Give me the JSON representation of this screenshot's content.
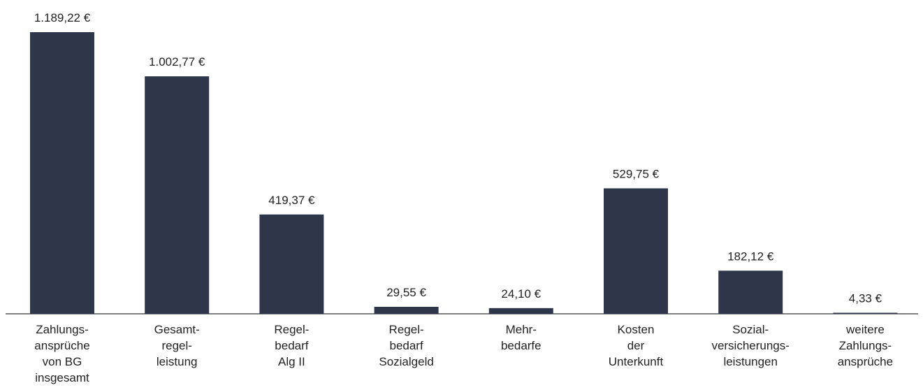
{
  "chart_data": {
    "type": "bar",
    "categories": [
      [
        "Zahlungs-",
        "ansprüche",
        "von BG",
        "insgesamt"
      ],
      [
        "Gesamt-",
        "regel-",
        "leistung"
      ],
      [
        "Regel-",
        "bedarf",
        "Alg II"
      ],
      [
        "Regel-",
        "bedarf",
        "Sozialgeld"
      ],
      [
        "Mehr-",
        "bedarfe"
      ],
      [
        "Kosten",
        "der",
        "Unterkunft"
      ],
      [
        "Sozial-",
        "versicherungs-",
        "leistungen"
      ],
      [
        "weitere",
        "Zahlungs-",
        "ansprüche"
      ]
    ],
    "values": [
      1189.22,
      1002.77,
      419.37,
      29.55,
      24.1,
      529.75,
      182.12,
      4.33
    ],
    "value_labels": [
      "1.189,22 €",
      "1.002,77 €",
      "419,37 €",
      "29,55 €",
      "24,10 €",
      "529,75 €",
      "182,12 €",
      "4,33 €"
    ],
    "title": "",
    "xlabel": "",
    "ylabel": "",
    "ylim": [
      0,
      1189.22
    ],
    "grid": false,
    "legend": "none",
    "colors": {
      "bar": "#2e3649",
      "axis": "#333333",
      "text": "#222222"
    }
  }
}
